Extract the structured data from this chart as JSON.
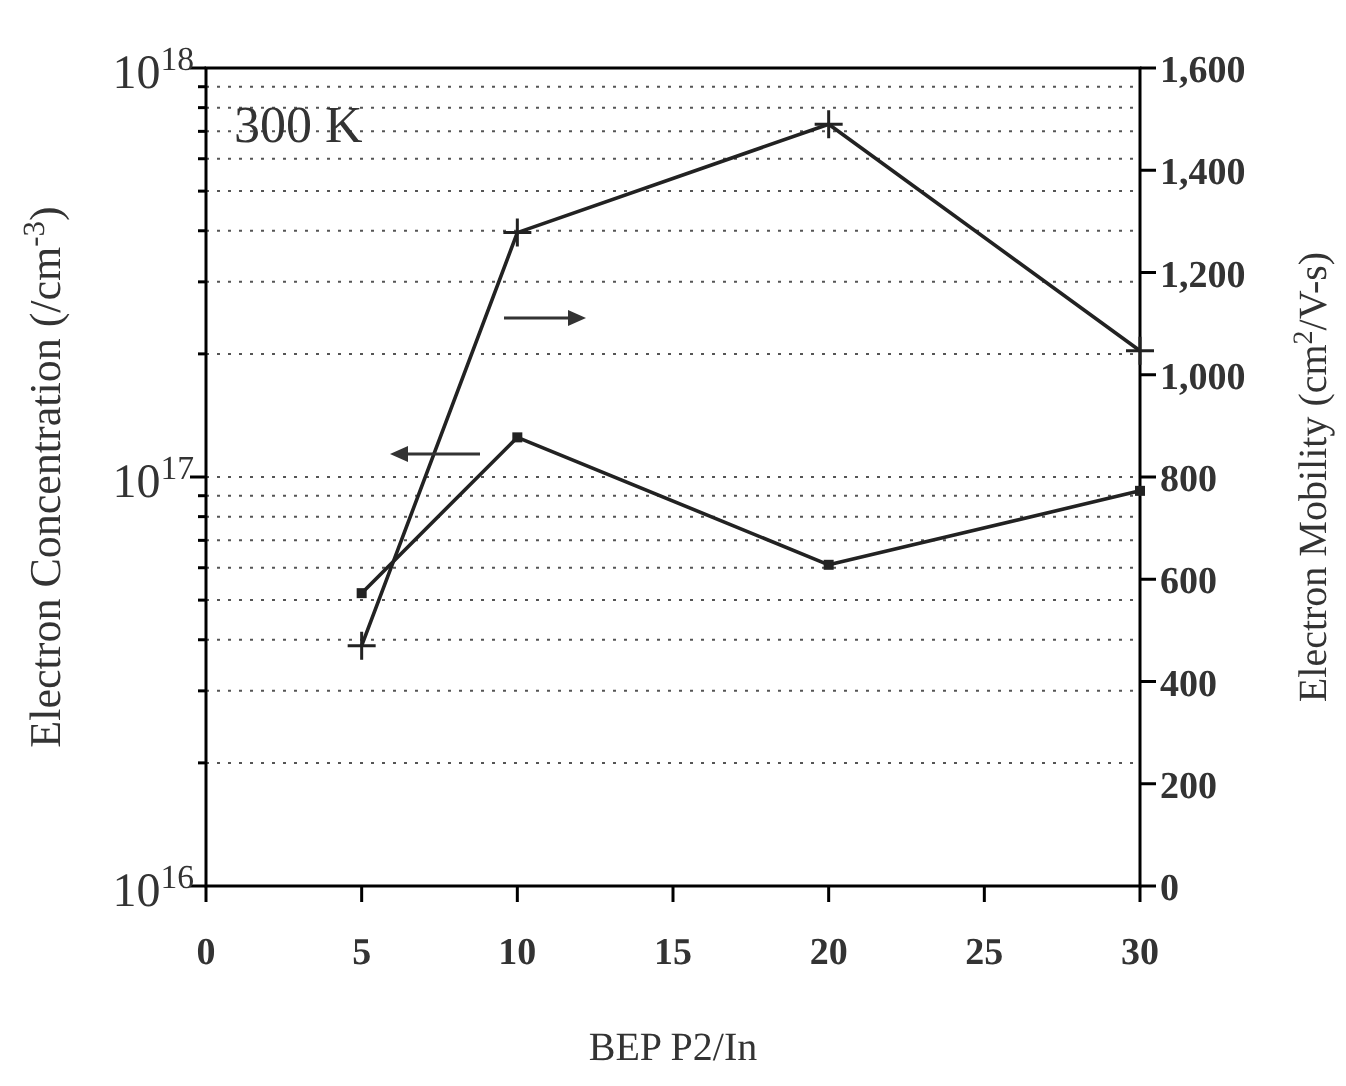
{
  "chart_data": {
    "type": "line",
    "xlabel": "BEP P2/In",
    "ylabel": "Electron Concentration (/cm$^{-3}$)",
    "y2label": "Electron Mobility (cm$^{2}$/V-s)",
    "annotations": [
      "300 K"
    ],
    "x": [
      5,
      10,
      20,
      30
    ],
    "series": [
      {
        "color": "#222222",
        "values": [
          5.2e+16,
          1.25e+17,
          6.1e+16,
          9.25e+16
        ],
        "marker": "square"
      },
      {
        "color": "#222222",
        "values": [
          470,
          1278,
          1490,
          1047
        ],
        "axis": "y2",
        "marker": "cross"
      }
    ],
    "xlim": [
      0,
      30
    ],
    "xticks": [
      0,
      5,
      10,
      15,
      20,
      25,
      30
    ],
    "log": "y",
    "ylim": [
      1e+16,
      1e+18
    ],
    "yticks": [
      {
        "value": 1e+16,
        "label": "10$^{16}$"
      },
      {
        "value": 2e+16,
        "label": null
      },
      {
        "value": 3e+16,
        "label": null
      },
      {
        "value": 4e+16,
        "label": null
      },
      {
        "value": 5e+16,
        "label": null
      },
      {
        "value": 6e+16,
        "label": null
      },
      {
        "value": 7e+16,
        "label": null
      },
      {
        "value": 8e+16,
        "label": null
      },
      {
        "value": 9e+16,
        "label": null
      },
      {
        "value": 1e+17,
        "label": "10$^{17}$"
      },
      {
        "value": 2e+17,
        "label": null
      },
      {
        "value": 3e+17,
        "label": null
      },
      {
        "value": 4e+17,
        "label": null
      },
      {
        "value": 5e+17,
        "label": null
      },
      {
        "value": 6e+17,
        "label": null
      },
      {
        "value": 7e+17,
        "label": null
      },
      {
        "value": 8e+17,
        "label": null
      },
      {
        "value": 9e+17,
        "label": null
      },
      {
        "value": 1e+18,
        "label": "10$^{18}$"
      }
    ],
    "y2lim": [
      0,
      1600
    ],
    "y2ticks": [
      {
        "value": 0,
        "label": "0"
      },
      {
        "value": 200,
        "label": "200"
      },
      {
        "value": 400,
        "label": "400"
      },
      {
        "value": 600,
        "label": "600"
      },
      {
        "value": 800,
        "label": "800"
      },
      {
        "value": 1000,
        "label": "1,000"
      },
      {
        "value": 1200,
        "label": "1,200"
      },
      {
        "value": 1400,
        "label": "1,400"
      },
      {
        "value": 1600,
        "label": "1,600"
      }
    ],
    "grid": "y"
  }
}
